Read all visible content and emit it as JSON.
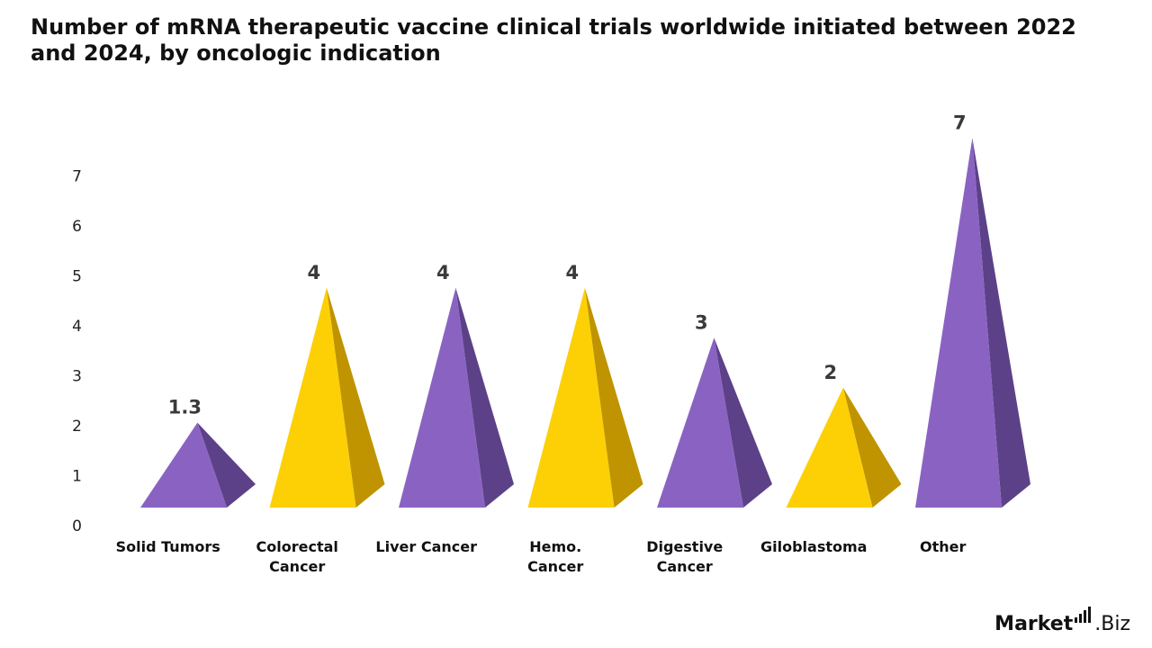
{
  "title": "Number of mRNA therapeutic vaccine clinical trials worldwide initiated between 2022 and 2024, by oncologic indication",
  "brand": {
    "name_bold": "Market",
    "name_light": ".Biz"
  },
  "colors": {
    "purple_face": "#8a63c2",
    "purple_side": "#5c4188",
    "yellow_face": "#fcd005",
    "yellow_side": "#bf9400",
    "value_label": "#3a3a3a"
  },
  "chart_data": {
    "type": "bar",
    "style": "3d-pyramid",
    "title": "Number of mRNA therapeutic vaccine clinical trials worldwide initiated between 2022 and 2024, by oncologic indication",
    "categories": [
      [
        "Solid Tumors"
      ],
      [
        "Colorectal",
        "Cancer"
      ],
      [
        "Liver Cancer"
      ],
      [
        "Hemo.",
        "Cancer"
      ],
      [
        "Digestive",
        "Cancer"
      ],
      [
        "Giloblastoma"
      ],
      [
        "Other"
      ]
    ],
    "values": [
      1.3,
      4,
      4,
      4,
      3,
      2,
      7
    ],
    "value_labels": [
      "1.3",
      "4",
      "4",
      "4",
      "3",
      "2",
      "7"
    ],
    "bar_colors": [
      "purple",
      "yellow",
      "purple",
      "yellow",
      "purple",
      "yellow",
      "purple"
    ],
    "yticks": [
      "0",
      "1",
      "2",
      "3",
      "4",
      "5",
      "6",
      "7"
    ],
    "ylim": [
      0,
      7
    ],
    "grid": false,
    "legend": "none"
  }
}
